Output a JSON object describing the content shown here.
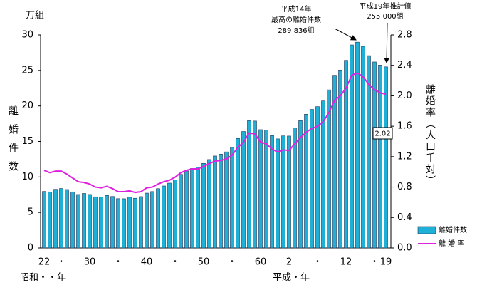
{
  "chart_data": {
    "type": "bar_line",
    "title": "万組",
    "y2_label": "離婚率（人口千対）",
    "y_label": "離婚件数",
    "x_era_labels": [
      "昭和・・年",
      "平成・年"
    ],
    "annotations": [
      {
        "lines": [
          "平成14年",
          "最高の離婚件数",
          "289 836組"
        ]
      },
      {
        "lines": [
          "平成19年推計値",
          "255 000組"
        ]
      }
    ],
    "categories": [
      "22",
      null,
      null,
      "・",
      null,
      null,
      null,
      null,
      "30",
      null,
      null,
      null,
      null,
      "・",
      null,
      null,
      null,
      null,
      "40",
      null,
      null,
      null,
      null,
      "・",
      null,
      null,
      null,
      null,
      "50",
      null,
      null,
      null,
      null,
      "・",
      null,
      null,
      null,
      null,
      "60",
      null,
      null,
      null,
      null,
      "2",
      null,
      null,
      null,
      null,
      "・",
      null,
      null,
      null,
      null,
      "12",
      null,
      null,
      null,
      null,
      "・",
      null,
      "19"
    ],
    "series": [
      {
        "name": "離婚件数",
        "color": "#1fb0d8",
        "axis": "y",
        "values": [
          7.96,
          7.9,
          8.26,
          8.37,
          8.23,
          7.9,
          7.53,
          7.68,
          7.53,
          7.2,
          7.17,
          7.4,
          7.25,
          6.94,
          6.93,
          7.14,
          7.0,
          7.23,
          7.72,
          7.94,
          8.35,
          8.73,
          9.13,
          9.59,
          10.36,
          10.84,
          11.19,
          11.36,
          11.91,
          12.45,
          12.95,
          13.21,
          13.53,
          14.17,
          15.42,
          16.4,
          17.92,
          17.87,
          16.66,
          16.61,
          15.82,
          15.36,
          15.78,
          15.76,
          16.9,
          17.92,
          18.83,
          19.51,
          19.9,
          20.7,
          22.26,
          24.32,
          25.05,
          26.42,
          28.59,
          28.98,
          28.39,
          27.08,
          26.19,
          25.75,
          25.5
        ]
      },
      {
        "name": "離 婚 率",
        "color": "#e020e0",
        "axis": "y2",
        "values": [
          1.02,
          0.99,
          1.01,
          1.01,
          0.97,
          0.92,
          0.87,
          0.86,
          0.84,
          0.8,
          0.79,
          0.81,
          0.78,
          0.74,
          0.74,
          0.75,
          0.73,
          0.74,
          0.79,
          0.8,
          0.84,
          0.87,
          0.89,
          0.93,
          0.99,
          1.02,
          1.04,
          1.04,
          1.07,
          1.11,
          1.14,
          1.15,
          1.17,
          1.22,
          1.32,
          1.39,
          1.51,
          1.5,
          1.39,
          1.37,
          1.3,
          1.26,
          1.29,
          1.28,
          1.37,
          1.45,
          1.52,
          1.57,
          1.6,
          1.66,
          1.78,
          1.94,
          2.0,
          2.1,
          2.27,
          2.3,
          2.25,
          2.15,
          2.08,
          2.04,
          2.02
        ]
      }
    ],
    "ylim": [
      0,
      30
    ],
    "yticks": [
      0,
      5,
      10,
      15,
      20,
      25,
      30
    ],
    "y2lim": [
      0,
      2.8
    ],
    "y2ticks": [
      {
        "value": 0,
        "label": "0.0"
      },
      0.4,
      0.8,
      1.2,
      1.6,
      {
        "value": 2,
        "label": "2.0"
      },
      2.4,
      2.8
    ],
    "legend": "bottom-right"
  }
}
